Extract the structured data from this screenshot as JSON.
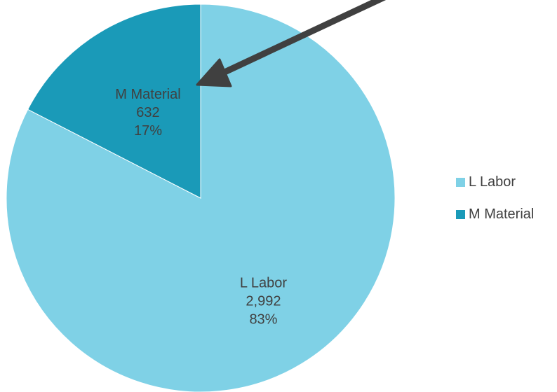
{
  "chart_data": {
    "type": "pie",
    "title": "",
    "slices": [
      {
        "name": "L Labor",
        "value": 2992,
        "value_label": "2,992",
        "percent_label": "83%",
        "color": "#7fd1e6"
      },
      {
        "name": "M Material",
        "value": 632,
        "value_label": "632",
        "percent_label": "17%",
        "color": "#1a9ab8"
      }
    ],
    "legend": {
      "position": "right"
    },
    "annotation": {
      "type": "arrow",
      "points_to": "M Material",
      "color": "#404040"
    }
  }
}
